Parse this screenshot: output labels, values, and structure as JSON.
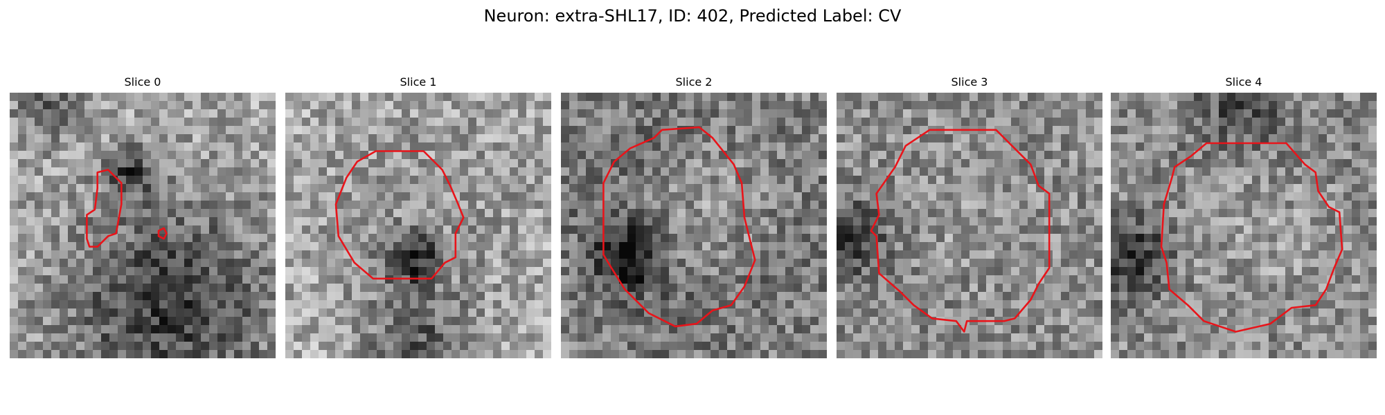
{
  "figure": {
    "title": "Neuron: extra-SHL17, ID: 402, Predicted Label: CV"
  },
  "panels": [
    {
      "title": "Slice 0",
      "image": "grayscale-microscopy-patch",
      "contour_color": "#e8141a"
    },
    {
      "title": "Slice 1",
      "image": "grayscale-microscopy-patch",
      "contour_color": "#e8141a"
    },
    {
      "title": "Slice 2",
      "image": "grayscale-microscopy-patch",
      "contour_color": "#e8141a"
    },
    {
      "title": "Slice 3",
      "image": "grayscale-microscopy-patch",
      "contour_color": "#e8141a"
    },
    {
      "title": "Slice 4",
      "image": "grayscale-microscopy-patch",
      "contour_color": "#e8141a"
    }
  ]
}
